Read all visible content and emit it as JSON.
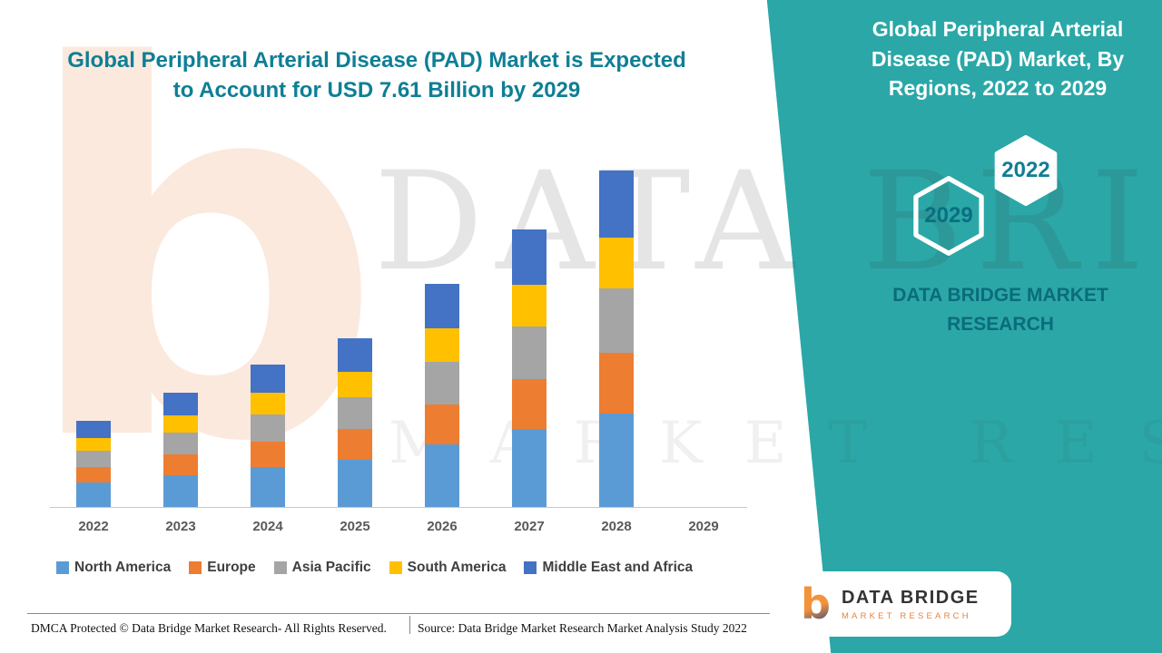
{
  "colors": {
    "teal_panel": "#2BA7A7",
    "title_teal": "#0E7F95",
    "panel_text_dark": "#0B6C7C"
  },
  "header": {
    "title": "Global Peripheral Arterial Disease (PAD) Market is Expected to Account for USD 7.61 Billion by 2029"
  },
  "side_panel": {
    "title": "Global Peripheral Arterial Disease (PAD) Market, By Regions, 2022 to 2029",
    "hex_back_label": "2029",
    "hex_front_label": "2022",
    "brand_text": "DATA BRIDGE MARKET RESEARCH"
  },
  "watermark": {
    "line1": "DATA BRIDGE",
    "line2": "MARKET RESEARCH",
    "b_glyph": "b"
  },
  "chart_data": {
    "type": "bar",
    "stacked": true,
    "title": "Global Peripheral Arterial Disease (PAD) Market, By Regions, 2022 to 2029",
    "xlabel": "",
    "ylabel": "",
    "y_axis_visible": false,
    "grid": false,
    "legend_position": "bottom",
    "note": "Values in USD billion, estimated from unlabeled bar heights; 2029 bar not drawn in source image.",
    "categories": [
      "2022",
      "2023",
      "2024",
      "2025",
      "2026",
      "2027",
      "2028",
      "2029"
    ],
    "series": [
      {
        "name": "North America",
        "color": "#5B9BD5",
        "values": [
          0.53,
          0.7,
          0.87,
          1.04,
          1.37,
          1.71,
          2.07,
          0
        ]
      },
      {
        "name": "Europe",
        "color": "#ED7D31",
        "values": [
          0.34,
          0.45,
          0.56,
          0.67,
          0.88,
          1.1,
          1.33,
          0
        ]
      },
      {
        "name": "Asia Pacific",
        "color": "#A5A5A5",
        "values": [
          0.36,
          0.48,
          0.59,
          0.7,
          0.93,
          1.16,
          1.41,
          0
        ]
      },
      {
        "name": "South America",
        "color": "#FFC000",
        "values": [
          0.29,
          0.38,
          0.47,
          0.56,
          0.74,
          0.92,
          1.11,
          0
        ]
      },
      {
        "name": "Middle East and Africa",
        "color": "#4472C4",
        "values": [
          0.38,
          0.5,
          0.62,
          0.74,
          0.98,
          1.22,
          1.48,
          0
        ]
      }
    ]
  },
  "footer": {
    "dmca": "DMCA Protected © Data Bridge Market Research- All Rights Reserved.",
    "source": "Source: Data Bridge Market Research Market Analysis Study 2022"
  },
  "logo": {
    "icon_glyph": "b",
    "name": "DATA BRIDGE",
    "subtitle": "MARKET RESEARCH"
  }
}
